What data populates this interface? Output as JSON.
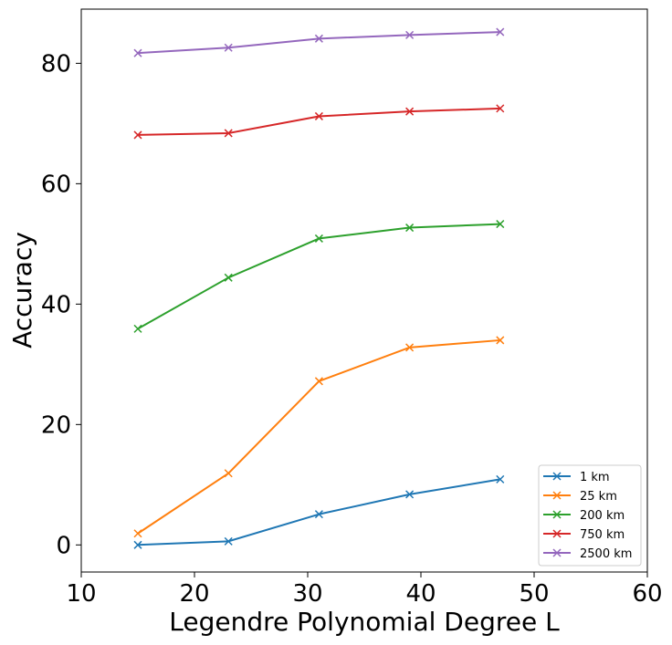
{
  "chart_data": {
    "type": "line",
    "title": "",
    "xlabel": "Legendre Polynomial Degree L",
    "ylabel": "Accuracy",
    "xlim": [
      10,
      60
    ],
    "ylim": [
      -4.5,
      89
    ],
    "xticks": [
      10,
      20,
      30,
      40,
      50,
      60
    ],
    "yticks": [
      0,
      20,
      40,
      60,
      80
    ],
    "grid": false,
    "legend_position": "lower-right",
    "marker": "x",
    "x": [
      15,
      23,
      31,
      39,
      47
    ],
    "series": [
      {
        "name": "1 km",
        "color": "#1f77b4",
        "values": [
          0.0,
          0.6,
          5.1,
          8.4,
          10.9
        ]
      },
      {
        "name": "25 km",
        "color": "#ff7f0e",
        "values": [
          1.9,
          11.9,
          27.2,
          32.8,
          34.0
        ]
      },
      {
        "name": "200 km",
        "color": "#2ca02c",
        "values": [
          35.9,
          44.4,
          50.9,
          52.7,
          53.3
        ]
      },
      {
        "name": "750 km",
        "color": "#d62728",
        "values": [
          68.1,
          68.4,
          71.2,
          72.0,
          72.5
        ]
      },
      {
        "name": "2500 km",
        "color": "#9467bd",
        "values": [
          81.7,
          82.6,
          84.1,
          84.7,
          85.2
        ]
      }
    ]
  }
}
